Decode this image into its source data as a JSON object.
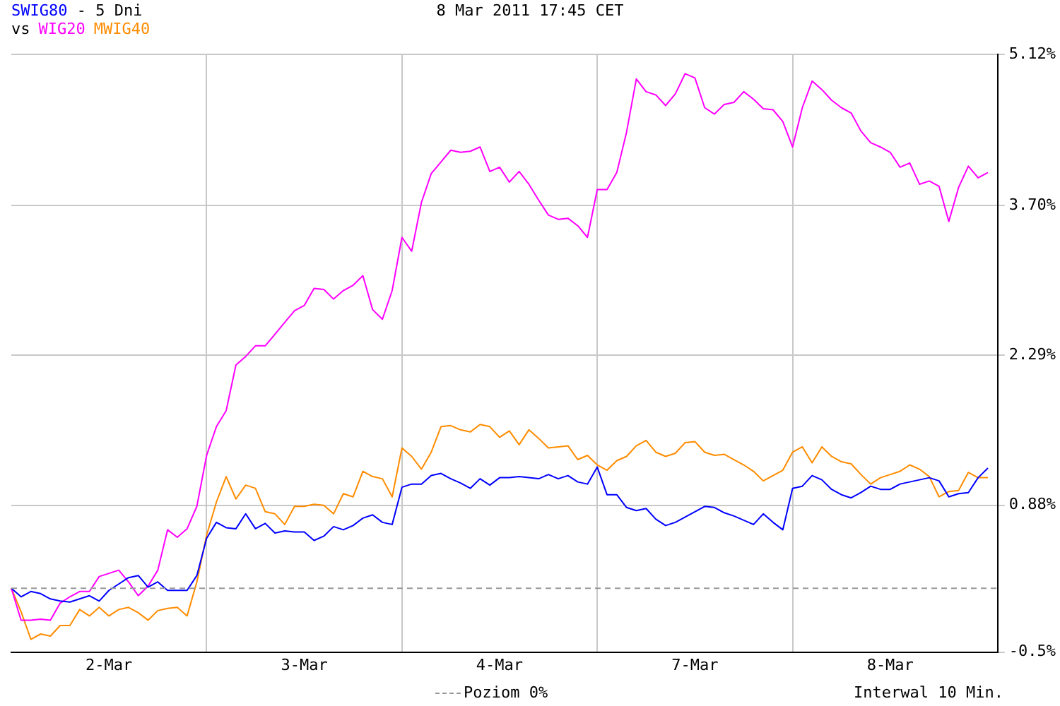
{
  "chart_data": {
    "type": "line",
    "title": "- 5 Dni",
    "legend_title": "vs",
    "legend": "bottom",
    "grid": true,
    "annotations": [
      "8 Mar 2011 17:45 CET",
      "Interwal 10 Min."
    ],
    "categories": [
      null,
      null,
      null,
      null,
      null,
      null,
      null,
      null,
      null,
      null,
      "2-Mar",
      null,
      null,
      null,
      null,
      null,
      null,
      null,
      null,
      null,
      null,
      null,
      null,
      null,
      null,
      null,
      null,
      null,
      null,
      null,
      "3-Mar",
      null,
      null,
      null,
      null,
      null,
      null,
      null,
      null,
      null,
      null,
      null,
      null,
      null,
      null,
      null,
      null,
      null,
      null,
      null,
      "4-Mar",
      null,
      null,
      null,
      null,
      null,
      null,
      null,
      null,
      null,
      null,
      null,
      null,
      null,
      null,
      null,
      null,
      null,
      null,
      null,
      "7-Mar",
      null,
      null,
      null,
      null,
      null,
      null,
      null,
      null,
      null,
      null,
      null,
      null,
      null,
      null,
      null,
      null,
      null,
      null,
      null,
      "8-Mar",
      null,
      null,
      null,
      null,
      null,
      null,
      null,
      null,
      null,
      null,
      null
    ],
    "ylim": [
      -0.5,
      5.12
    ],
    "yticks": [
      {
        "value": -0.5,
        "label": "-0.5%"
      },
      {
        "value": 0.88,
        "label": "0.88%"
      },
      {
        "value": 2.29,
        "label": "2.29%"
      },
      {
        "value": 3.7,
        "label": "3.70%"
      },
      {
        "value": 5.12,
        "label": "5.12%"
      }
    ],
    "ref_lines": [
      {
        "axis": "y",
        "value": 0.1,
        "label": "Poziom 0%",
        "color": "#999999",
        "line_style": "dashed"
      }
    ],
    "series": [
      {
        "name": "SWIG80",
        "color": "#0000ff",
        "values": [
          0.1,
          0.02,
          0.07,
          0.05,
          0.0,
          -0.02,
          -0.03,
          0.0,
          0.03,
          -0.02,
          0.08,
          0.14,
          0.2,
          0.22,
          0.11,
          0.16,
          0.08,
          0.08,
          0.08,
          0.22,
          0.57,
          0.72,
          0.67,
          0.66,
          0.8,
          0.66,
          0.71,
          0.62,
          0.64,
          0.63,
          0.63,
          0.55,
          0.59,
          0.68,
          0.65,
          0.69,
          0.76,
          0.79,
          0.72,
          0.7,
          1.05,
          1.08,
          1.08,
          1.16,
          1.18,
          1.13,
          1.09,
          1.04,
          1.13,
          1.07,
          1.14,
          1.14,
          1.15,
          1.14,
          1.13,
          1.17,
          1.13,
          1.16,
          1.1,
          1.08,
          1.24,
          0.98,
          0.98,
          0.86,
          0.83,
          0.85,
          0.75,
          0.69,
          0.72,
          0.77,
          0.82,
          0.87,
          0.86,
          0.81,
          0.78,
          0.74,
          0.7,
          0.8,
          0.72,
          0.65,
          1.04,
          1.06,
          1.16,
          1.12,
          1.03,
          0.98,
          0.95,
          1.0,
          1.06,
          1.03,
          1.03,
          1.08,
          1.1,
          1.12,
          1.14,
          1.11,
          0.96,
          0.99,
          1.0,
          1.14,
          1.23,
          null
        ]
      },
      {
        "name": "WIG20",
        "color": "#ff00ff",
        "values": [
          0.1,
          -0.2,
          -0.2,
          -0.19,
          -0.2,
          -0.04,
          0.02,
          0.07,
          0.07,
          0.21,
          0.24,
          0.27,
          0.16,
          0.03,
          0.12,
          0.27,
          0.65,
          0.58,
          0.66,
          0.87,
          1.35,
          1.62,
          1.77,
          2.2,
          2.28,
          2.38,
          2.38,
          2.49,
          2.6,
          2.71,
          2.76,
          2.92,
          2.91,
          2.82,
          2.9,
          2.95,
          3.04,
          2.72,
          2.63,
          2.9,
          3.4,
          3.27,
          3.73,
          4.0,
          4.11,
          4.22,
          4.2,
          4.21,
          4.25,
          4.02,
          4.06,
          3.92,
          4.02,
          3.9,
          3.75,
          3.61,
          3.57,
          3.58,
          3.51,
          3.4,
          3.85,
          3.85,
          4.01,
          4.39,
          4.89,
          4.77,
          4.74,
          4.64,
          4.75,
          4.94,
          4.9,
          4.62,
          4.56,
          4.65,
          4.67,
          4.77,
          4.7,
          4.61,
          4.6,
          4.49,
          4.25,
          4.62,
          4.87,
          4.79,
          4.69,
          4.62,
          4.57,
          4.4,
          4.29,
          4.25,
          4.2,
          4.06,
          4.1,
          3.9,
          3.93,
          3.88,
          3.55,
          3.87,
          4.07,
          3.96,
          4.01,
          null
        ]
      },
      {
        "name": "MWIG40",
        "color": "#ff8c00",
        "values": [
          0.1,
          -0.12,
          -0.38,
          -0.33,
          -0.35,
          -0.25,
          -0.25,
          -0.1,
          -0.16,
          -0.08,
          -0.16,
          -0.1,
          -0.08,
          -0.13,
          -0.2,
          -0.11,
          -0.09,
          -0.08,
          -0.16,
          0.16,
          0.6,
          0.91,
          1.15,
          0.94,
          1.07,
          1.04,
          0.82,
          0.8,
          0.7,
          0.87,
          0.87,
          0.89,
          0.88,
          0.8,
          0.99,
          0.96,
          1.2,
          1.15,
          1.13,
          0.96,
          1.42,
          1.34,
          1.22,
          1.38,
          1.62,
          1.63,
          1.59,
          1.57,
          1.64,
          1.62,
          1.52,
          1.58,
          1.45,
          1.59,
          1.51,
          1.42,
          1.43,
          1.44,
          1.31,
          1.35,
          1.26,
          1.21,
          1.3,
          1.34,
          1.44,
          1.49,
          1.38,
          1.34,
          1.37,
          1.47,
          1.48,
          1.38,
          1.35,
          1.36,
          1.31,
          1.26,
          1.2,
          1.11,
          1.16,
          1.21,
          1.38,
          1.43,
          1.28,
          1.43,
          1.34,
          1.29,
          1.27,
          1.17,
          1.08,
          1.14,
          1.17,
          1.2,
          1.26,
          1.22,
          1.15,
          0.96,
          1.01,
          1.02,
          1.19,
          1.14,
          1.14,
          null
        ]
      }
    ]
  }
}
